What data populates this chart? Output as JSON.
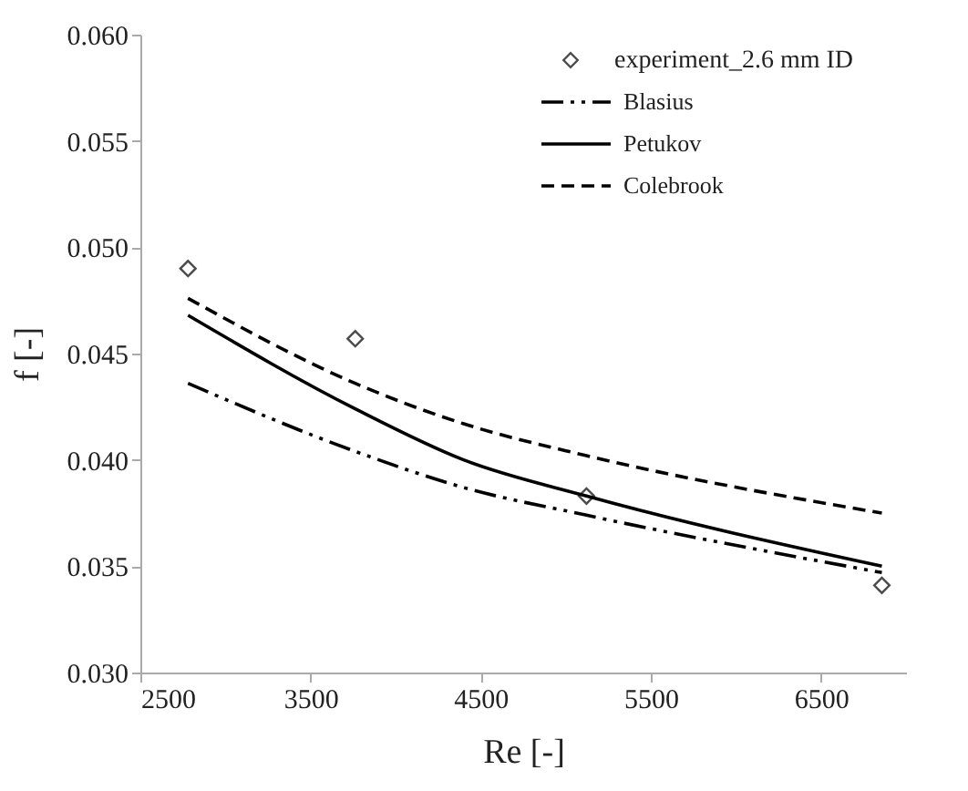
{
  "chart_data": {
    "type": "line",
    "xlabel": "Re [-]",
    "ylabel": "f [-]",
    "xlim": [
      2500,
      7000
    ],
    "xticks": [
      2500,
      3500,
      4500,
      5500,
      6500
    ],
    "ylim": [
      0.03,
      0.06
    ],
    "yticks": [
      {
        "value": 0.03,
        "label": "0.030"
      },
      {
        "value": 0.035,
        "label": "0.035"
      },
      {
        "value": 0.04,
        "label": "0.040"
      },
      {
        "value": 0.045,
        "label": "0.045"
      },
      {
        "value": 0.05,
        "label": "0.050"
      },
      {
        "value": 0.055,
        "label": "0.055"
      },
      {
        "value": 0.06,
        "label": "0.060"
      }
    ],
    "grid": false,
    "legend": "top right",
    "series": [
      {
        "name": "experiment_2.6 mm ID",
        "type": "scatter",
        "marker": "diamond",
        "color": "#000000",
        "x": [
          2780,
          3763,
          5122,
          6858
        ],
        "values": [
          0.049,
          0.0457,
          0.0383,
          0.0341
        ]
      },
      {
        "name": "Blasius",
        "line_style": "dashdot",
        "color": "#000000",
        "x": [
          2780,
          3763,
          4400,
          5122,
          6858
        ],
        "values": [
          0.0436,
          0.0404,
          0.0387,
          0.0374,
          0.0347
        ]
      },
      {
        "name": "Petukov",
        "line_style": "solid",
        "color": "#000000",
        "x": [
          2780,
          3763,
          4400,
          5122,
          6858
        ],
        "values": [
          0.0468,
          0.0424,
          0.04,
          0.0383,
          0.035
        ]
      },
      {
        "name": "Colebrook",
        "line_style": "dashed",
        "color": "#000000",
        "x": [
          2780,
          3763,
          4400,
          5122,
          6858
        ],
        "values": [
          0.0476,
          0.0436,
          0.0417,
          0.0402,
          0.0375
        ]
      }
    ]
  }
}
